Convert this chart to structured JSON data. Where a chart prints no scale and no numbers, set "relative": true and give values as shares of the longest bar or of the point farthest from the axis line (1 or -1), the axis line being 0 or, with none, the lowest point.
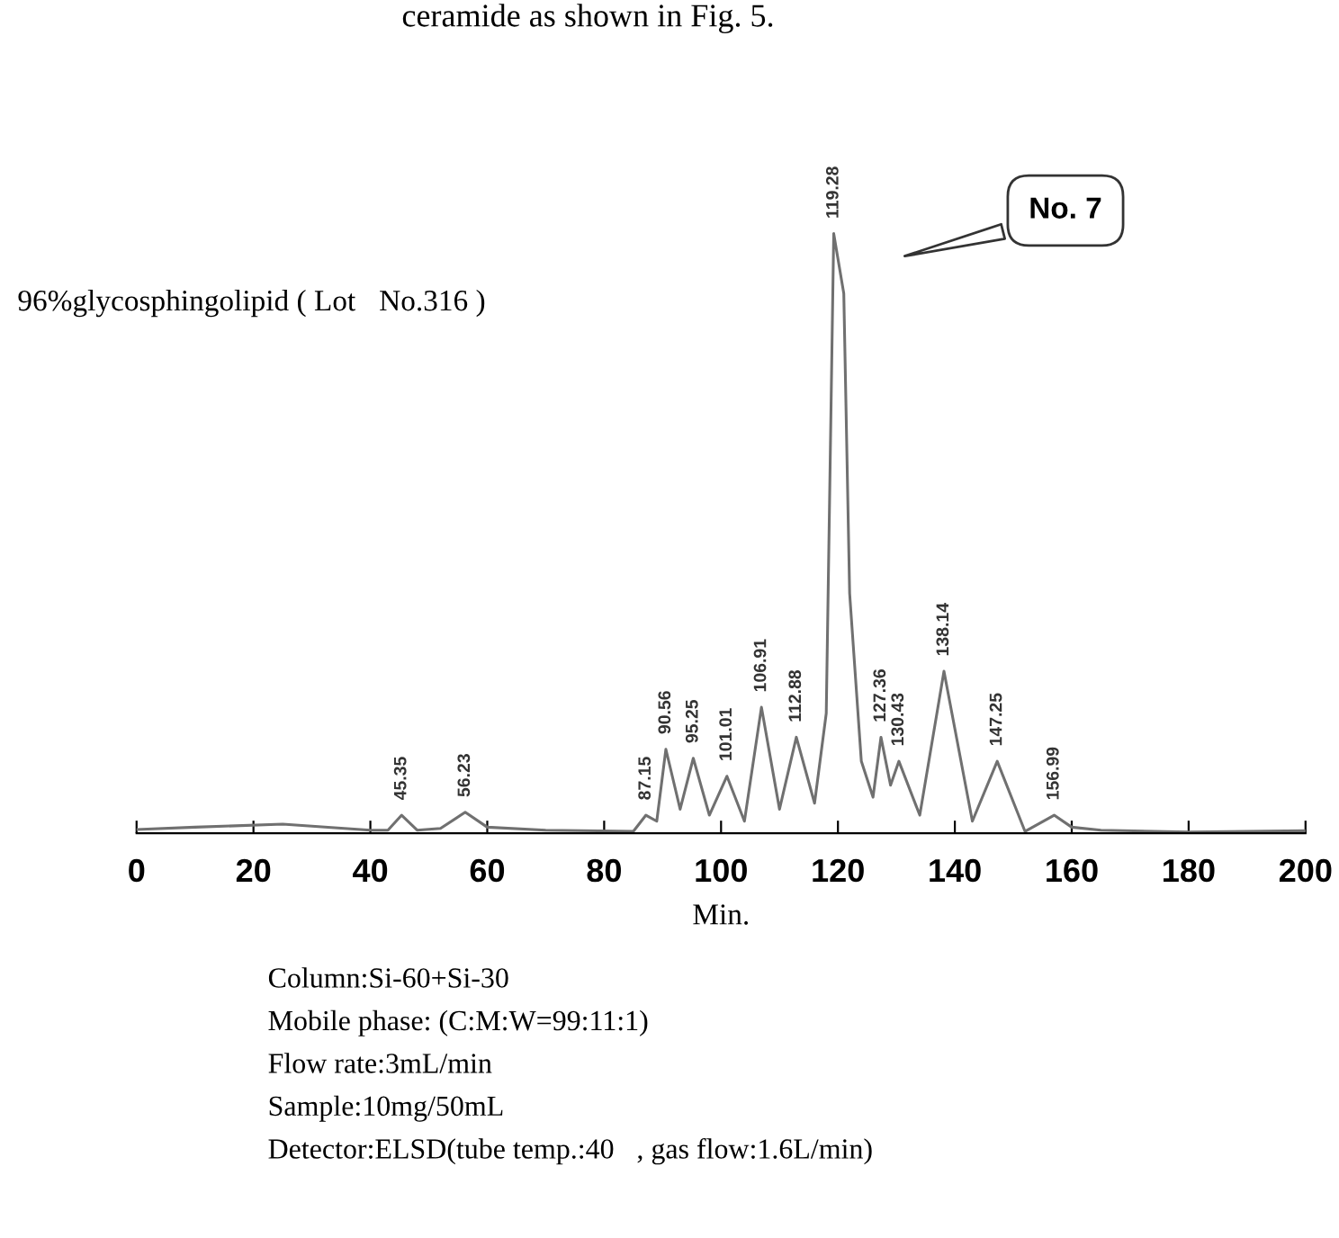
{
  "chart_data": {
    "type": "line",
    "title": "96%glycosphingolipid ( Lot　No.316 )",
    "xlabel": "Min.",
    "relative": true,
    "xlim": [
      0,
      200
    ],
    "xticks": [
      0,
      20,
      40,
      60,
      80,
      100,
      120,
      140,
      160,
      180,
      200
    ],
    "grid": false,
    "legend": false,
    "marker": "none",
    "line_style": "solid",
    "series": [
      {
        "color": "#707070",
        "x": [
          0,
          10,
          25,
          40,
          43,
          45.35,
          48,
          52,
          56.23,
          60,
          70,
          85,
          87.15,
          89,
          90.56,
          93,
          95.25,
          98,
          101.01,
          104,
          106.91,
          110,
          112.88,
          116,
          118,
          119.28,
          121,
          122,
          124,
          126,
          127.36,
          129,
          130.43,
          134,
          138.14,
          143,
          147.25,
          152,
          156.99,
          160,
          165,
          180,
          200
        ],
        "values": [
          0.006,
          0.01,
          0.015,
          0.005,
          0.005,
          0.03,
          0.005,
          0.008,
          0.035,
          0.01,
          0.005,
          0.003,
          0.03,
          0.02,
          0.14,
          0.04,
          0.125,
          0.03,
          0.095,
          0.02,
          0.21,
          0.04,
          0.16,
          0.05,
          0.2,
          1.0,
          0.9,
          0.4,
          0.12,
          0.06,
          0.16,
          0.08,
          0.12,
          0.03,
          0.27,
          0.02,
          0.12,
          0.003,
          0.03,
          0.01,
          0.005,
          0.002,
          0.004
        ]
      }
    ],
    "annotations": [
      "ceramide as shown in Fig. 5.",
      "Column:Si-60+Si-30",
      "Mobile phase: (C:M:W=99:11:1)",
      "Flow rate:3mL/min",
      "Sample:10mg/50mL",
      "Detector:ELSD(tube temp.:40　, gas flow:1.6L/min)",
      "No. 7",
      {
        "text": "45.35",
        "x": 45.35,
        "y": 0.03
      },
      {
        "text": "56.23",
        "x": 56.23,
        "y": 0.035
      },
      {
        "text": "87.15",
        "x": 87.15,
        "y": 0.03
      },
      {
        "text": "90.56",
        "x": 90.56,
        "y": 0.14
      },
      {
        "text": "95.25",
        "x": 95.25,
        "y": 0.125
      },
      {
        "text": "101.01",
        "x": 101.01,
        "y": 0.095
      },
      {
        "text": "106.91",
        "x": 106.91,
        "y": 0.21
      },
      {
        "text": "112.88",
        "x": 112.88,
        "y": 0.16
      },
      {
        "text": "119.28",
        "x": 119.28,
        "y": 1.0
      },
      {
        "text": "127.36",
        "x": 127.36,
        "y": 0.16
      },
      {
        "text": "130.43",
        "x": 130.43,
        "y": 0.12
      },
      {
        "text": "138.14",
        "x": 138.14,
        "y": 0.27
      },
      {
        "text": "147.25",
        "x": 147.25,
        "y": 0.12
      },
      {
        "text": "156.99",
        "x": 156.99,
        "y": 0.03
      }
    ]
  }
}
